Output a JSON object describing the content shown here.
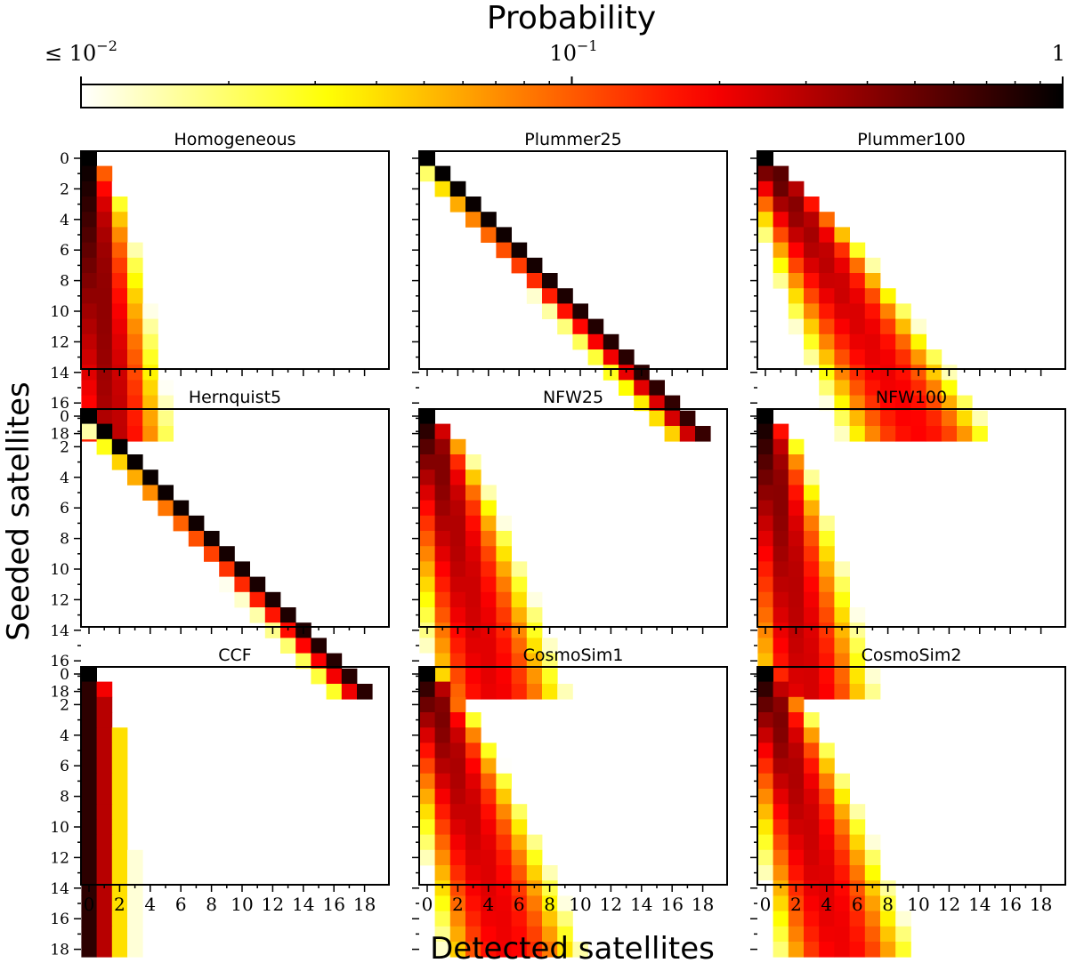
{
  "colorbar": {
    "label": "Probability",
    "ticks": [
      {
        "value": 0.01,
        "text": "≤ 10",
        "exp": "−2"
      },
      {
        "value": 0.1,
        "text": "10",
        "exp": "−1"
      },
      {
        "value": 1,
        "text": "1",
        "exp": ""
      }
    ],
    "scale": "log",
    "range": [
      0.01,
      1
    ],
    "colormap": "hot_r"
  },
  "axes": {
    "xlabel": "Detected satellites",
    "ylabel": "Seeded satellites",
    "xticks": [
      0,
      2,
      4,
      6,
      8,
      10,
      12,
      14,
      16,
      18
    ],
    "yticks": [
      0,
      2,
      4,
      6,
      8,
      10,
      12,
      14,
      16,
      18
    ],
    "range": [
      0,
      18
    ]
  },
  "chart_data": {
    "type": "heatmap",
    "panels": [
      {
        "title": "Homogeneous",
        "model": {
          "kind": "frac",
          "f": 0.1,
          "c": 0.0
        }
      },
      {
        "title": "Plummer25",
        "model": {
          "kind": "diag",
          "p": 0.02
        }
      },
      {
        "title": "Plummer100",
        "model": {
          "kind": "frac",
          "f": 0.55,
          "c": 0.0
        }
      },
      {
        "title": "Hernquist5",
        "model": {
          "kind": "diag",
          "p": 0.015
        }
      },
      {
        "title": "NFW25",
        "model": {
          "kind": "frac",
          "f": 0.25,
          "c": 0.0
        }
      },
      {
        "title": "NFW100",
        "model": {
          "kind": "frac",
          "f": 0.17,
          "c": 0.0
        }
      },
      {
        "title": "CCF",
        "model": {
          "kind": "ccf"
        }
      },
      {
        "title": "CosmoSim1",
        "model": {
          "kind": "frac",
          "f": 0.3,
          "c": 0.0
        }
      },
      {
        "title": "CosmoSim2",
        "model": {
          "kind": "frac",
          "f": 0.28,
          "c": 0.0
        }
      }
    ]
  }
}
